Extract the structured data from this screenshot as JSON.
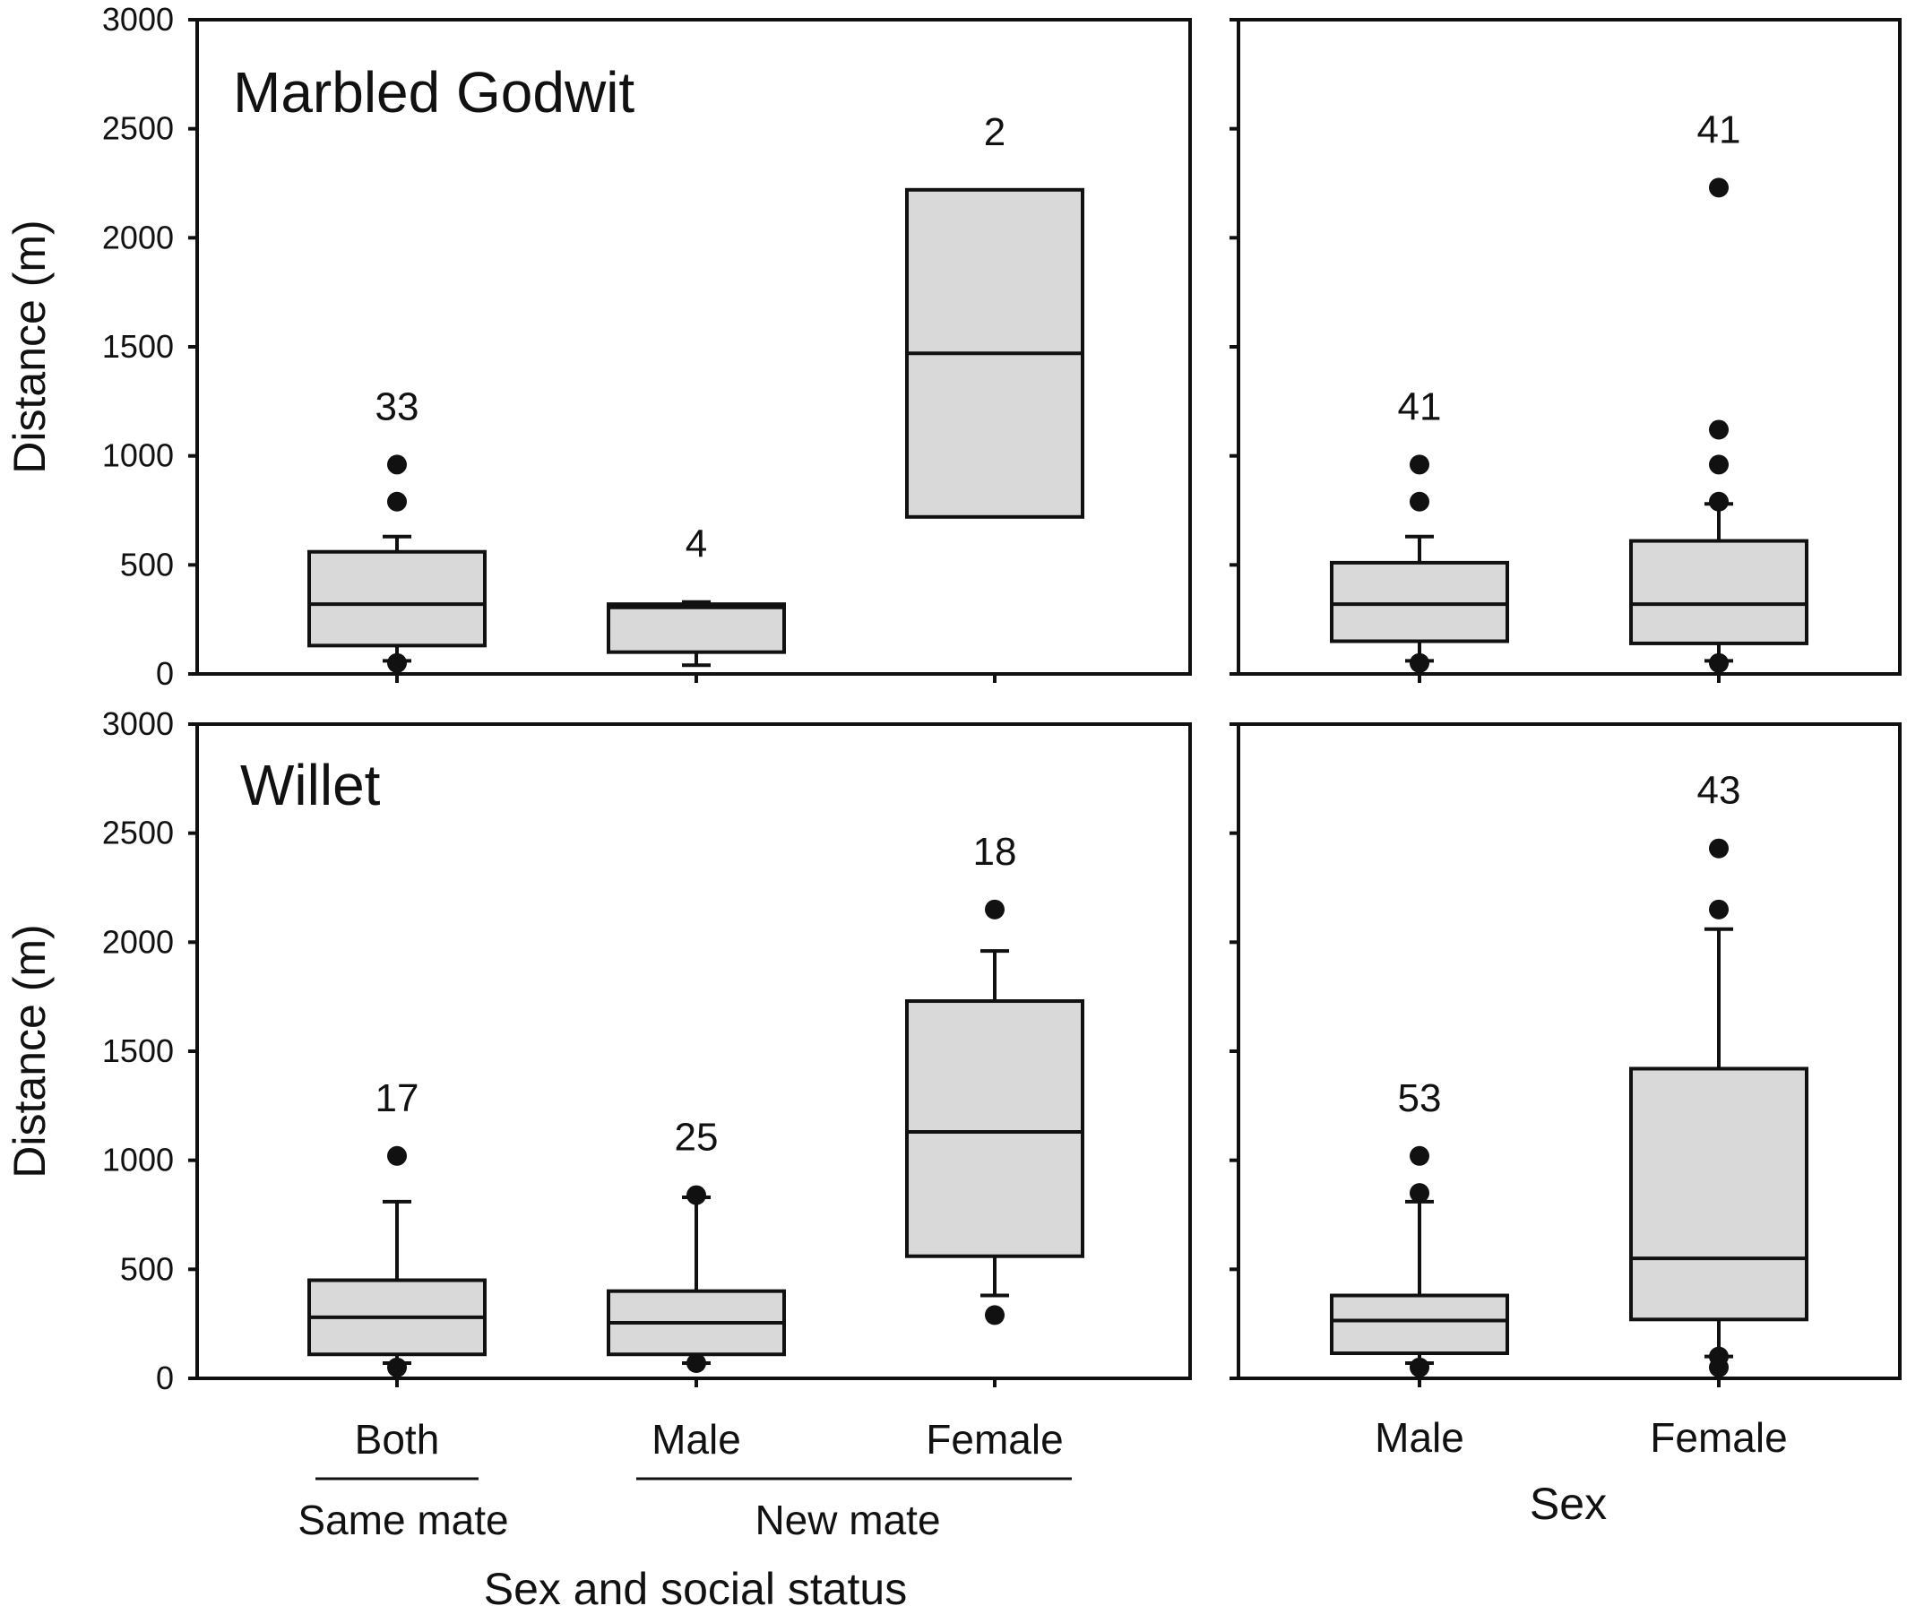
{
  "chart_data": [
    {
      "type": "box",
      "panel": "top-left",
      "title": "Marbled Godwit",
      "ylabel": "Distance (m)",
      "ylim": [
        0,
        3000
      ],
      "yticks": [
        "0",
        "500",
        "1000",
        "1500",
        "2000",
        "2500",
        "3000"
      ],
      "categories": [
        "Both",
        "Male",
        "Female"
      ],
      "boxes": [
        {
          "category": "Both",
          "n": "33",
          "q1": 130,
          "median": 320,
          "q3": 560,
          "whisker_low": 60,
          "whisker_high": 630,
          "outliers": [
            790,
            960,
            50
          ]
        },
        {
          "category": "Male",
          "n": "4",
          "q1": 100,
          "median": 305,
          "q3": 320,
          "whisker_low": 40,
          "whisker_high": 330,
          "outliers": []
        },
        {
          "category": "Female",
          "n": "2",
          "q1": 720,
          "median": 1470,
          "q3": 2220,
          "whisker_low": null,
          "whisker_high": null,
          "outliers": []
        }
      ]
    },
    {
      "type": "box",
      "panel": "top-right",
      "ylim": [
        0,
        3000
      ],
      "categories": [
        "Male",
        "Female"
      ],
      "boxes": [
        {
          "category": "Male",
          "n": "41",
          "q1": 150,
          "median": 320,
          "q3": 510,
          "whisker_low": 60,
          "whisker_high": 630,
          "outliers": [
            790,
            960,
            50
          ]
        },
        {
          "category": "Female",
          "n": "41",
          "q1": 140,
          "median": 320,
          "q3": 610,
          "whisker_low": 60,
          "whisker_high": 780,
          "outliers": [
            790,
            960,
            1120,
            2230,
            50
          ]
        }
      ]
    },
    {
      "type": "box",
      "panel": "bottom-left",
      "title": "Willet",
      "ylabel": "Distance (m)",
      "xlabel": "Sex and social status",
      "ylim": [
        0,
        3000
      ],
      "yticks": [
        "0",
        "500",
        "1000",
        "1500",
        "2000",
        "2500",
        "3000"
      ],
      "categories": [
        "Both",
        "Male",
        "Female"
      ],
      "boxes": [
        {
          "category": "Both",
          "n": "17",
          "q1": 110,
          "median": 280,
          "q3": 450,
          "whisker_low": 70,
          "whisker_high": 810,
          "outliers": [
            1020,
            50
          ]
        },
        {
          "category": "Male",
          "n": "25",
          "q1": 110,
          "median": 255,
          "q3": 400,
          "whisker_low": 70,
          "whisker_high": 830,
          "outliers": [
            840,
            70
          ]
        },
        {
          "category": "Female",
          "n": "18",
          "q1": 560,
          "median": 1130,
          "q3": 1730,
          "whisker_low": 380,
          "whisker_high": 1960,
          "outliers": [
            2150,
            290
          ]
        }
      ]
    },
    {
      "type": "box",
      "panel": "bottom-right",
      "xlabel": "Sex",
      "ylim": [
        0,
        3000
      ],
      "categories": [
        "Male",
        "Female"
      ],
      "boxes": [
        {
          "category": "Male",
          "n": "53",
          "q1": 115,
          "median": 265,
          "q3": 380,
          "whisker_low": 70,
          "whisker_high": 810,
          "outliers": [
            850,
            1020,
            50
          ]
        },
        {
          "category": "Female",
          "n": "43",
          "q1": 270,
          "median": 550,
          "q3": 1420,
          "whisker_low": 100,
          "whisker_high": 2060,
          "outliers": [
            2150,
            2430,
            100,
            50
          ]
        }
      ]
    }
  ],
  "x_axis_left": {
    "categories": [
      "Both",
      "Male",
      "Female"
    ],
    "groups": [
      "Same mate",
      "New mate"
    ],
    "label": "Sex and social status"
  },
  "x_axis_right": {
    "categories": [
      "Male",
      "Female"
    ],
    "label": "Sex"
  }
}
